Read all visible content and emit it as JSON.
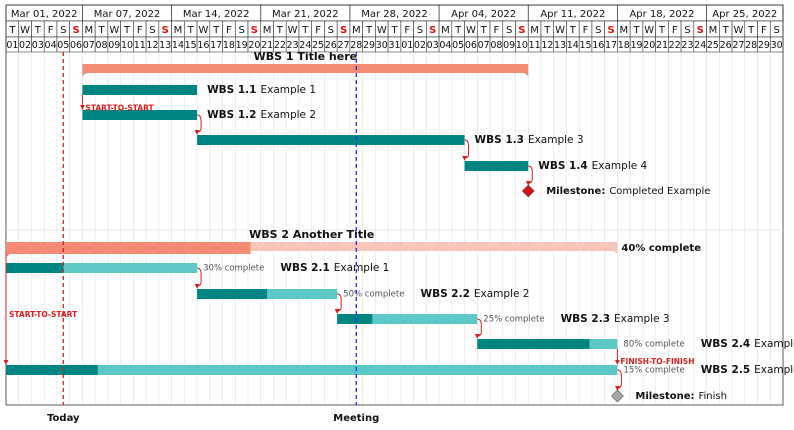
{
  "chart_data": {
    "type": "gantt",
    "xlim": [
      "2022-03-01",
      "2022-05-01"
    ],
    "weeks": [
      "Mar 01, 2022",
      "Mar 07, 2022",
      "Mar 14, 2022",
      "Mar 21, 2022",
      "Mar 28, 2022",
      "Apr 04, 2022",
      "Apr 11, 2022",
      "Apr 18, 2022",
      "Apr 25, 2022"
    ],
    "day_letters": [
      "T",
      "W",
      "T",
      "F",
      "S",
      "S",
      "M",
      "T",
      "W",
      "T",
      "F",
      "S",
      "S",
      "M",
      "T",
      "W",
      "T",
      "F",
      "S",
      "S",
      "M",
      "T",
      "W",
      "T",
      "F",
      "S",
      "S",
      "M",
      "T",
      "W",
      "T",
      "F",
      "S",
      "S",
      "M",
      "T",
      "W",
      "T",
      "F",
      "S",
      "S",
      "M",
      "T",
      "W",
      "T",
      "F",
      "S",
      "S",
      "M",
      "T",
      "W",
      "T",
      "F",
      "S",
      "S",
      "M",
      "T",
      "W",
      "T",
      "F",
      "S"
    ],
    "day_numbers": [
      "01",
      "02",
      "03",
      "04",
      "05",
      "06",
      "07",
      "08",
      "09",
      "10",
      "11",
      "12",
      "13",
      "14",
      "15",
      "16",
      "17",
      "18",
      "19",
      "20",
      "21",
      "22",
      "23",
      "24",
      "25",
      "26",
      "27",
      "28",
      "29",
      "30",
      "31",
      "01",
      "02",
      "03",
      "04",
      "05",
      "06",
      "07",
      "08",
      "09",
      "10",
      "11",
      "12",
      "13",
      "14",
      "15",
      "16",
      "17",
      "18",
      "19",
      "20",
      "21",
      "22",
      "23",
      "24",
      "25",
      "26",
      "27",
      "28",
      "29",
      "30"
    ],
    "rows": [
      {
        "kind": "group",
        "label": "WBS 1 Title here",
        "start": "2022-03-07",
        "end": "2022-04-10",
        "color": "#f28a74"
      },
      {
        "kind": "task",
        "id": "WBS 1.1",
        "name": "Example 1",
        "start": "2022-03-07",
        "end": "2022-03-15",
        "color": "#008585"
      },
      {
        "kind": "task",
        "id": "WBS 1.2",
        "name": "Example 2",
        "start": "2022-03-07",
        "end": "2022-03-15",
        "color": "#008585"
      },
      {
        "kind": "task",
        "id": "WBS 1.3",
        "name": "Example 3",
        "start": "2022-03-16",
        "end": "2022-04-05",
        "color": "#008585"
      },
      {
        "kind": "task",
        "id": "WBS 1.4",
        "name": "Example 4",
        "start": "2022-04-06",
        "end": "2022-04-10",
        "color": "#008585"
      },
      {
        "kind": "milestone",
        "id": "Milestone:",
        "name": "Completed Example",
        "date": "2022-04-10",
        "color": "#d01414"
      },
      {
        "kind": "group",
        "label": "WBS 2 Another Title",
        "start": "2022-03-01",
        "end": "2022-04-17",
        "progress": 40,
        "progress_label": "40% complete",
        "color": "#f28a74",
        "rest_color": "#f7c6b9"
      },
      {
        "kind": "task",
        "id": "WBS 2.1",
        "name": "Example 1",
        "start": "2022-03-01",
        "end": "2022-03-15",
        "progress": 30,
        "progress_label": "30% complete",
        "color": "#008585",
        "rest_color": "#5cc8c8"
      },
      {
        "kind": "task",
        "id": "WBS 2.2",
        "name": "Example 2",
        "start": "2022-03-16",
        "end": "2022-03-26",
        "progress": 50,
        "progress_label": "50% complete",
        "color": "#008585",
        "rest_color": "#5cc8c8"
      },
      {
        "kind": "task",
        "id": "WBS 2.3",
        "name": "Example 3",
        "start": "2022-03-27",
        "end": "2022-04-06",
        "progress": 25,
        "progress_label": "25% complete",
        "color": "#008585",
        "rest_color": "#5cc8c8"
      },
      {
        "kind": "task",
        "id": "WBS 2.4",
        "name": "Example 4",
        "start": "2022-04-07",
        "end": "2022-04-17",
        "progress": 80,
        "progress_label": "80% complete",
        "color": "#008585",
        "rest_color": "#5cc8c8"
      },
      {
        "kind": "task",
        "id": "WBS 2.5",
        "name": "Example",
        "start": "2022-03-01",
        "end": "2022-04-17",
        "progress": 15,
        "progress_label": "15% complete",
        "color": "#008585",
        "rest_color": "#5cc8c8"
      },
      {
        "kind": "milestone",
        "id": "Milestone:",
        "name": "Finish",
        "date": "2022-04-17",
        "color": "#a8a8a8"
      }
    ],
    "links": [
      {
        "from": 1,
        "to": 2,
        "type": "start-start",
        "label": "START-TO-START"
      },
      {
        "from": 2,
        "to": 3,
        "type": "finish-start"
      },
      {
        "from": 3,
        "to": 4,
        "type": "finish-start"
      },
      {
        "from": 4,
        "to": 5,
        "type": "finish-start"
      },
      {
        "from": 7,
        "to": 8,
        "type": "finish-start"
      },
      {
        "from": 8,
        "to": 9,
        "type": "finish-start"
      },
      {
        "from": 9,
        "to": 10,
        "type": "finish-start"
      },
      {
        "from": 6,
        "to": 11,
        "type": "start-start",
        "label": "START-TO-START"
      },
      {
        "from": 10,
        "to": 11,
        "type": "finish-finish",
        "label": "FINISH-TO-FINISH"
      },
      {
        "from": 11,
        "to": 12,
        "type": "finish-start"
      }
    ],
    "markers": [
      {
        "label": "Today",
        "date": "2022-03-05",
        "color": "#e02020"
      },
      {
        "label": "Meeting",
        "date": "2022-03-28",
        "color": "#2a2ae0"
      }
    ]
  }
}
